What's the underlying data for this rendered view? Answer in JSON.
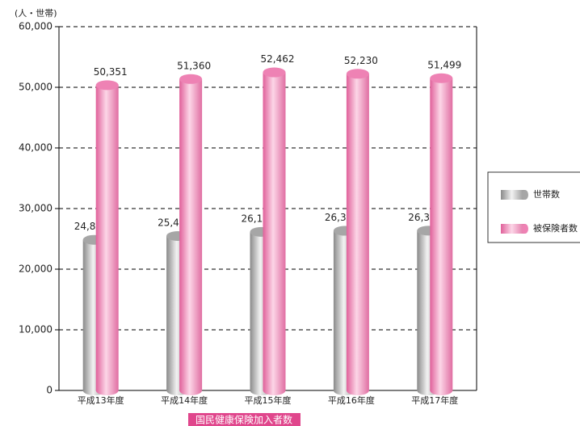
{
  "chart_data": {
    "type": "bar",
    "title": "国民健康保険加入者数",
    "unit_label": "(人・世帯)",
    "categories": [
      "平成13年度",
      "平成14年度",
      "平成15年度",
      "平成16年度",
      "平成17年度"
    ],
    "series": [
      {
        "name": "世帯数",
        "color": "#a6a6a6",
        "values": [
          24841,
          25469,
          26149,
          26330,
          26350
        ],
        "value_labels": [
          "24,841",
          "25,469",
          "26,149",
          "26,330",
          "26,350"
        ]
      },
      {
        "name": "被保険者数",
        "color": "#ee82b4",
        "values": [
          50351,
          51360,
          52462,
          52230,
          51499
        ],
        "value_labels": [
          "50,351",
          "51,360",
          "52,462",
          "52,230",
          "51,499"
        ]
      }
    ],
    "ylim": [
      0,
      60000
    ],
    "yticks": [
      0,
      {
        "value": 10000,
        "label": "10,000"
      },
      {
        "value": 20000,
        "label": "20,000"
      },
      {
        "value": 30000,
        "label": "30,000"
      },
      {
        "value": 40000,
        "label": "40,000"
      },
      {
        "value": 50000,
        "label": "50,000"
      },
      {
        "value": 60000,
        "label": "60,000"
      }
    ],
    "grid": true,
    "legend": "right"
  }
}
